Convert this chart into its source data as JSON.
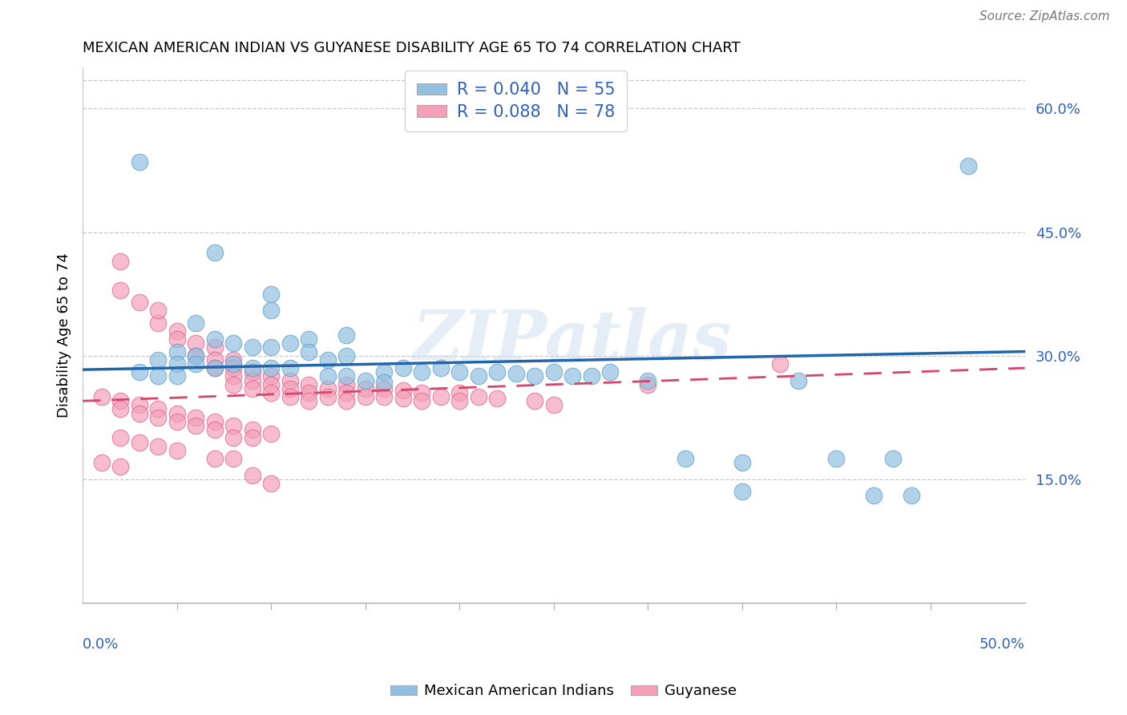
{
  "title": "MEXICAN AMERICAN INDIAN VS GUYANESE DISABILITY AGE 65 TO 74 CORRELATION CHART",
  "source": "Source: ZipAtlas.com",
  "watermark": "ZIPatlas",
  "legend_labels": [
    "Mexican American Indians",
    "Guyanese"
  ],
  "blue_R": 0.04,
  "blue_N": 55,
  "pink_R": 0.088,
  "pink_N": 78,
  "blue_color": "#92c0e0",
  "pink_color": "#f4a0b8",
  "blue_edge_color": "#5a9fc8",
  "pink_edge_color": "#e06090",
  "blue_line_color": "#2166ac",
  "pink_line_color": "#d9456a",
  "text_color": "#3060c0",
  "xlim": [
    0,
    0.5
  ],
  "ylim": [
    0,
    0.65
  ],
  "yticks": [
    0.15,
    0.3,
    0.45,
    0.6
  ],
  "ytick_labels": [
    "15.0%",
    "30.0%",
    "45.0%",
    "60.0%"
  ],
  "blue_trend": [
    0.283,
    0.305
  ],
  "pink_trend": [
    0.245,
    0.285
  ],
  "blue_scatter": [
    [
      0.03,
      0.535
    ],
    [
      0.07,
      0.425
    ],
    [
      0.1,
      0.375
    ],
    [
      0.1,
      0.355
    ],
    [
      0.06,
      0.34
    ],
    [
      0.14,
      0.325
    ],
    [
      0.07,
      0.32
    ],
    [
      0.08,
      0.315
    ],
    [
      0.09,
      0.31
    ],
    [
      0.1,
      0.31
    ],
    [
      0.11,
      0.315
    ],
    [
      0.12,
      0.32
    ],
    [
      0.12,
      0.305
    ],
    [
      0.05,
      0.305
    ],
    [
      0.06,
      0.3
    ],
    [
      0.13,
      0.295
    ],
    [
      0.14,
      0.3
    ],
    [
      0.04,
      0.295
    ],
    [
      0.05,
      0.29
    ],
    [
      0.06,
      0.29
    ],
    [
      0.07,
      0.285
    ],
    [
      0.08,
      0.29
    ],
    [
      0.09,
      0.285
    ],
    [
      0.1,
      0.285
    ],
    [
      0.11,
      0.285
    ],
    [
      0.16,
      0.28
    ],
    [
      0.17,
      0.285
    ],
    [
      0.18,
      0.28
    ],
    [
      0.19,
      0.285
    ],
    [
      0.2,
      0.28
    ],
    [
      0.03,
      0.28
    ],
    [
      0.04,
      0.275
    ],
    [
      0.05,
      0.275
    ],
    [
      0.21,
      0.275
    ],
    [
      0.22,
      0.28
    ],
    [
      0.23,
      0.278
    ],
    [
      0.24,
      0.275
    ],
    [
      0.13,
      0.275
    ],
    [
      0.14,
      0.275
    ],
    [
      0.15,
      0.27
    ],
    [
      0.16,
      0.268
    ],
    [
      0.25,
      0.28
    ],
    [
      0.26,
      0.275
    ],
    [
      0.27,
      0.275
    ],
    [
      0.28,
      0.28
    ],
    [
      0.3,
      0.27
    ],
    [
      0.32,
      0.175
    ],
    [
      0.35,
      0.17
    ],
    [
      0.35,
      0.135
    ],
    [
      0.38,
      0.27
    ],
    [
      0.4,
      0.175
    ],
    [
      0.42,
      0.13
    ],
    [
      0.43,
      0.175
    ],
    [
      0.44,
      0.13
    ],
    [
      0.47,
      0.53
    ]
  ],
  "pink_scatter": [
    [
      0.02,
      0.415
    ],
    [
      0.02,
      0.38
    ],
    [
      0.03,
      0.365
    ],
    [
      0.04,
      0.34
    ],
    [
      0.04,
      0.355
    ],
    [
      0.05,
      0.33
    ],
    [
      0.05,
      0.32
    ],
    [
      0.06,
      0.315
    ],
    [
      0.06,
      0.3
    ],
    [
      0.07,
      0.31
    ],
    [
      0.07,
      0.295
    ],
    [
      0.07,
      0.285
    ],
    [
      0.08,
      0.295
    ],
    [
      0.08,
      0.285
    ],
    [
      0.08,
      0.275
    ],
    [
      0.08,
      0.265
    ],
    [
      0.09,
      0.28
    ],
    [
      0.09,
      0.27
    ],
    [
      0.09,
      0.26
    ],
    [
      0.1,
      0.275
    ],
    [
      0.1,
      0.265
    ],
    [
      0.1,
      0.255
    ],
    [
      0.11,
      0.27
    ],
    [
      0.11,
      0.26
    ],
    [
      0.11,
      0.25
    ],
    [
      0.12,
      0.265
    ],
    [
      0.12,
      0.255
    ],
    [
      0.12,
      0.245
    ],
    [
      0.13,
      0.26
    ],
    [
      0.13,
      0.25
    ],
    [
      0.14,
      0.265
    ],
    [
      0.14,
      0.255
    ],
    [
      0.14,
      0.245
    ],
    [
      0.15,
      0.26
    ],
    [
      0.15,
      0.25
    ],
    [
      0.16,
      0.26
    ],
    [
      0.16,
      0.25
    ],
    [
      0.17,
      0.258
    ],
    [
      0.17,
      0.248
    ],
    [
      0.18,
      0.255
    ],
    [
      0.18,
      0.245
    ],
    [
      0.19,
      0.25
    ],
    [
      0.2,
      0.255
    ],
    [
      0.2,
      0.245
    ],
    [
      0.21,
      0.25
    ],
    [
      0.22,
      0.248
    ],
    [
      0.24,
      0.245
    ],
    [
      0.25,
      0.24
    ],
    [
      0.3,
      0.265
    ],
    [
      0.37,
      0.29
    ],
    [
      0.01,
      0.25
    ],
    [
      0.02,
      0.245
    ],
    [
      0.02,
      0.235
    ],
    [
      0.03,
      0.24
    ],
    [
      0.03,
      0.23
    ],
    [
      0.04,
      0.235
    ],
    [
      0.04,
      0.225
    ],
    [
      0.05,
      0.23
    ],
    [
      0.05,
      0.22
    ],
    [
      0.06,
      0.225
    ],
    [
      0.06,
      0.215
    ],
    [
      0.07,
      0.22
    ],
    [
      0.07,
      0.21
    ],
    [
      0.08,
      0.215
    ],
    [
      0.08,
      0.2
    ],
    [
      0.09,
      0.21
    ],
    [
      0.09,
      0.2
    ],
    [
      0.1,
      0.205
    ],
    [
      0.02,
      0.2
    ],
    [
      0.03,
      0.195
    ],
    [
      0.04,
      0.19
    ],
    [
      0.05,
      0.185
    ],
    [
      0.07,
      0.175
    ],
    [
      0.08,
      0.175
    ],
    [
      0.09,
      0.155
    ],
    [
      0.1,
      0.145
    ],
    [
      0.01,
      0.17
    ],
    [
      0.02,
      0.165
    ]
  ]
}
